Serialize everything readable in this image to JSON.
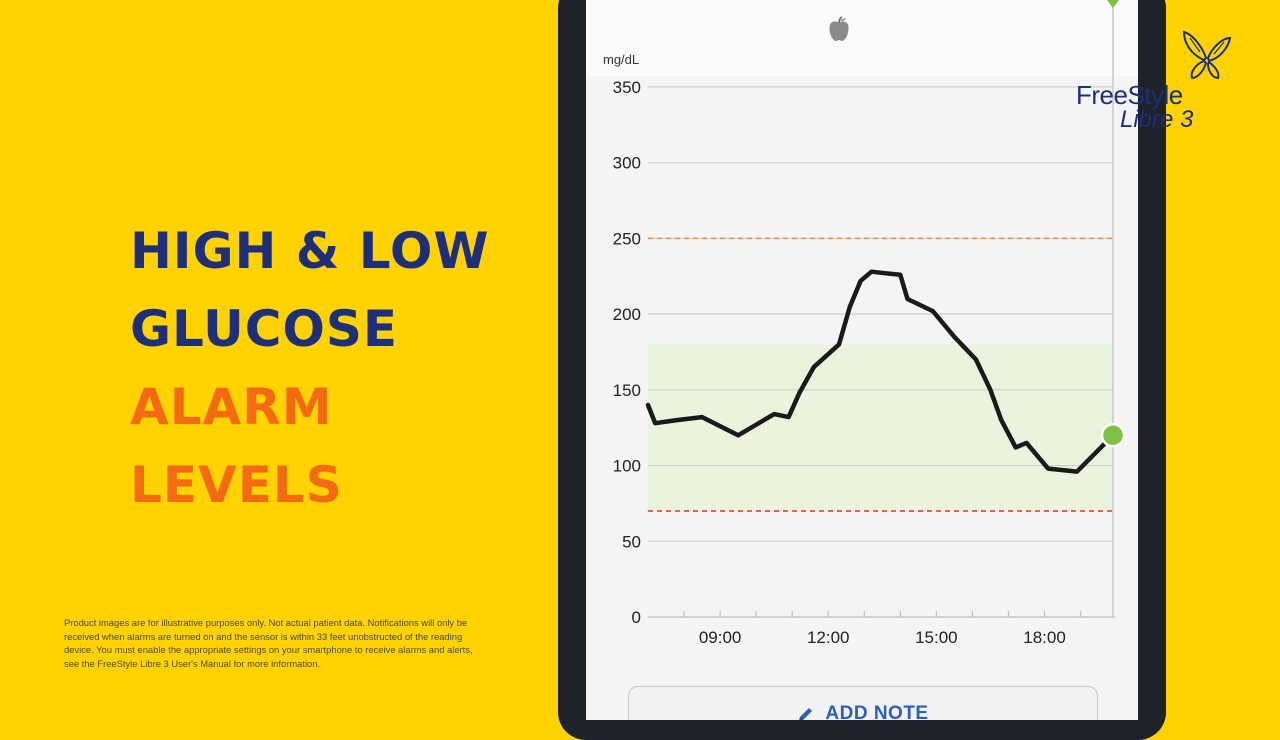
{
  "headline": {
    "line1": "HIGH & LOW",
    "line2": "GLUCOSE",
    "line3": "ALARM",
    "line4": "LEVELS"
  },
  "disclaimer": "Product images are for illustrative purposes only. Not actual patient data. Notifications will only be received when alarms are turned on and the sensor is within 33 feet unobstructed of the reading device. You must enable the appropriate settings on your smartphone to receive alarms and alerts, see the FreeStyle Libre 3 User's Manual for more information.",
  "logo": {
    "line1": "FreeStyle",
    "line2": "Libre 3"
  },
  "colors": {
    "background": "#FFD200",
    "navy": "#1E2F7A",
    "orange": "#F36A10",
    "accent_blue": "#2B5FB8",
    "point_green": "#7DC242",
    "target_band": "#EAF3DC",
    "high_line": "#F08A3C",
    "low_line": "#E0302E"
  },
  "icons": {
    "meal": "apple-icon",
    "note": "pencil-icon",
    "brand": "butterfly-icon"
  },
  "add_note_label": "ADD NOTE",
  "chart_data": {
    "type": "line",
    "ylabel": "mg/dL",
    "ylim": [
      0,
      350
    ],
    "yticks": [
      0,
      50,
      100,
      150,
      200,
      250,
      300,
      350
    ],
    "xticks": [
      "09:00",
      "12:00",
      "15:00",
      "18:00"
    ],
    "x_hours_range": [
      7.0,
      19.9
    ],
    "high_alarm": 250,
    "low_alarm": 70,
    "target_range": [
      70,
      180
    ],
    "series": [
      {
        "x": [
          7.0,
          7.2,
          7.8,
          8.5,
          9.5,
          10.5,
          10.9,
          11.2,
          11.6,
          12.3,
          12.6,
          12.9,
          13.2,
          13.6,
          14.0,
          14.2,
          14.9,
          15.5,
          16.1,
          16.5,
          16.8,
          17.2,
          17.5,
          18.1,
          18.9,
          19.9
        ],
        "y": [
          140,
          128,
          130,
          132,
          120,
          134,
          132,
          148,
          165,
          180,
          205,
          222,
          228,
          227,
          226,
          210,
          202,
          185,
          170,
          150,
          130,
          112,
          115,
          98,
          96,
          120
        ]
      }
    ],
    "current": {
      "x": 19.9,
      "y": 120
    }
  }
}
